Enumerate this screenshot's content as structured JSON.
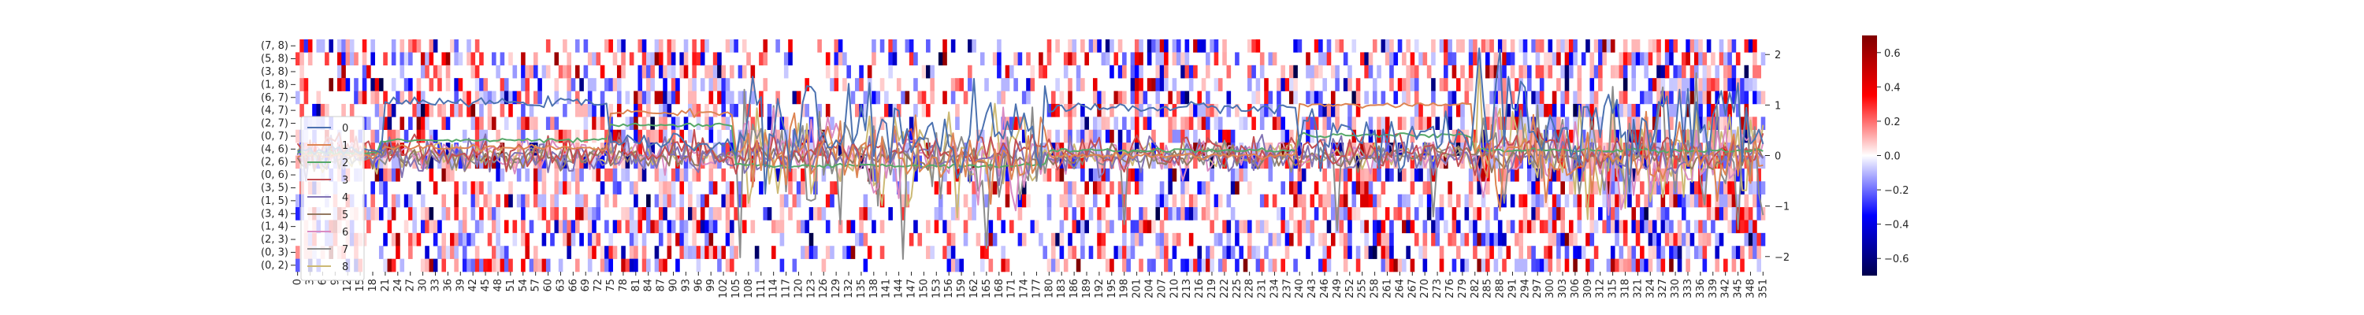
{
  "chart_data": [
    {
      "type": "heatmap",
      "title": "",
      "xlabel": "",
      "ylabel": "",
      "n_columns": 352,
      "x_tick_labels": [
        "0",
        "3",
        "6",
        "9",
        "12",
        "15",
        "18",
        "21",
        "24",
        "27",
        "30",
        "33",
        "36",
        "39",
        "42",
        "45",
        "48",
        "51",
        "54",
        "57",
        "60",
        "63",
        "66",
        "69",
        "72",
        "75",
        "78",
        "81",
        "84",
        "87",
        "90",
        "93",
        "96",
        "99",
        "102",
        "105",
        "108",
        "111",
        "114",
        "117",
        "120",
        "123",
        "126",
        "129",
        "132",
        "135",
        "138",
        "141",
        "144",
        "147",
        "150",
        "153",
        "156",
        "159",
        "162",
        "165",
        "168",
        "171",
        "174",
        "177",
        "180",
        "183",
        "186",
        "189",
        "192",
        "195",
        "198",
        "201",
        "204",
        "207",
        "210",
        "213",
        "216",
        "219",
        "222",
        "225",
        "228",
        "231",
        "234",
        "237",
        "240",
        "243",
        "246",
        "249",
        "252",
        "255",
        "258",
        "261",
        "264",
        "267",
        "270",
        "273",
        "276",
        "279",
        "282",
        "285",
        "288",
        "291",
        "294",
        "297",
        "300",
        "303",
        "306",
        "309",
        "312",
        "315",
        "318",
        "321",
        "324",
        "327",
        "330",
        "333",
        "336",
        "339",
        "342",
        "345",
        "348",
        "351"
      ],
      "y_tick_labels": [
        "(7, 8)",
        "(5, 8)",
        "(3, 8)",
        "(1, 8)",
        "(6, 7)",
        "(4, 7)",
        "(2, 7)",
        "(0, 7)",
        "(4, 6)",
        "(2, 6)",
        "(0, 6)",
        "(3, 5)",
        "(1, 5)",
        "(3, 4)",
        "(1, 4)",
        "(2, 3)",
        "(0, 3)",
        "(0, 2)"
      ],
      "colorbar": {
        "min": -0.7,
        "max": 0.7,
        "ticks": [
          "0.6",
          "0.4",
          "0.2",
          "0.0",
          "−0.2",
          "−0.4",
          "−0.6"
        ],
        "tick_values": [
          0.6,
          0.4,
          0.2,
          0.0,
          -0.2,
          -0.4,
          -0.6
        ],
        "colormap": "seismic"
      },
      "density_note_blocks": [
        [
          0,
          20,
          0.5
        ],
        [
          20,
          70,
          0.45
        ],
        [
          70,
          105,
          0.55
        ],
        [
          105,
          180,
          0.25
        ],
        [
          180,
          240,
          0.45
        ],
        [
          240,
          282,
          0.45
        ],
        [
          282,
          352,
          0.55
        ]
      ]
    },
    {
      "type": "line",
      "title": "",
      "xlabel": "",
      "ylabel": "",
      "ylim": [
        -2.3,
        2.3
      ],
      "y_ticks": [
        "2",
        "1",
        "0",
        "−1",
        "−2"
      ],
      "y_tick_values": [
        2,
        1,
        0,
        -1,
        -2
      ],
      "legend_position": "center-left",
      "series": [
        {
          "name": "0",
          "color": "#4c72b0"
        },
        {
          "name": "1",
          "color": "#dd8452"
        },
        {
          "name": "2",
          "color": "#55a868"
        },
        {
          "name": "3",
          "color": "#c44e52"
        },
        {
          "name": "4",
          "color": "#8172b3"
        },
        {
          "name": "5",
          "color": "#937860"
        },
        {
          "name": "6",
          "color": "#da8bc3"
        },
        {
          "name": "7",
          "color": "#8c8c8c"
        },
        {
          "name": "8",
          "color": "#ccb974"
        }
      ]
    }
  ]
}
